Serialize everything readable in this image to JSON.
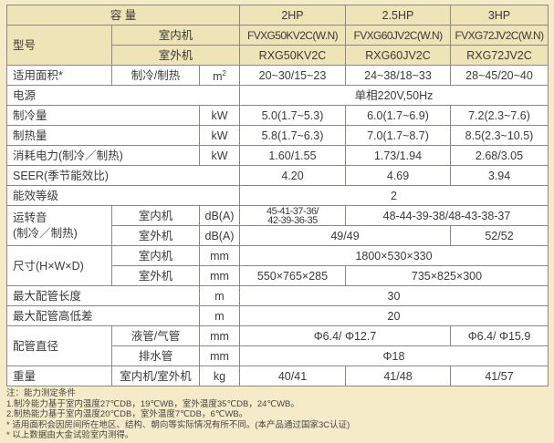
{
  "header": {
    "capacity_label": "容 量",
    "model_label": "型号",
    "indoor": "室内机",
    "outdoor": "室外机",
    "hp": [
      "2HP",
      "2.5HP",
      "3HP"
    ],
    "indoor_models": [
      "FVXG50KV2C(W.N)",
      "FVXG60JV2C(W.N)",
      "FVXG72JV2C(W.N)"
    ],
    "outdoor_models": [
      "RXG50KV2C",
      "RXG60JV2C",
      "RXG72JV2C"
    ]
  },
  "rows": {
    "area": {
      "label": "适用面积*",
      "sub": "制冷/制热",
      "unit": "m",
      "unit_sup": "2",
      "values": [
        "20~30/15~23",
        "24~38/18~33",
        "28~45/20~40"
      ]
    },
    "power_supply": {
      "label": "电源",
      "value": "单相220V,50Hz"
    },
    "cooling": {
      "label": "制冷量",
      "unit": "kW",
      "values": [
        "5.0(1.7~5.3)",
        "6.0(1.7~6.9)",
        "7.2(2.3~7.6)"
      ]
    },
    "heating": {
      "label": "制热量",
      "unit": "kW",
      "values": [
        "5.8(1.7~6.3)",
        "7.0(1.7~8.7)",
        "8.5(2.3~10.5)"
      ]
    },
    "consumption": {
      "label": "消耗电力(制冷／制热)",
      "unit": "kW",
      "values": [
        "1.60/1.55",
        "1.73/1.94",
        "2.68/3.05"
      ]
    },
    "seer": {
      "label": "SEER(季节能效比)",
      "values": [
        "4.20",
        "4.69",
        "3.94"
      ]
    },
    "efficiency": {
      "label": "能效等级",
      "value": "2"
    },
    "noise": {
      "label1": "运转音",
      "label2": "(制冷／制热)",
      "indoor": "室内机",
      "outdoor": "室外机",
      "unit": "dB(A)",
      "indoor_values": [
        "45-41-37-36/",
        "42-39-36-35",
        "48-44-39-38/48-43-38-37"
      ],
      "outdoor_values": [
        "49/49",
        "52/52"
      ]
    },
    "size": {
      "label": "尺寸(H×W×D)",
      "indoor": "室内机",
      "outdoor": "室外机",
      "unit": "mm",
      "indoor_value": "1800×530×330",
      "outdoor_values": [
        "550×765×285",
        "735×825×300"
      ]
    },
    "max_pipe_length": {
      "label": "最大配管长度",
      "unit": "m",
      "value": "30"
    },
    "max_height_diff": {
      "label": "最大配管高低差",
      "unit": "m",
      "value": "20"
    },
    "pipe_diameter": {
      "label": "配管直径",
      "liquid_gas": "液管/气管",
      "drain": "排水管",
      "unit": "mm",
      "liquid_gas_values": [
        "Φ6.4/ Φ12.7",
        "Φ6.4/ Φ15.9"
      ],
      "drain_value": "Φ18"
    },
    "weight": {
      "label": "重量",
      "sub": "室内机/室外机",
      "unit": "kg",
      "values": [
        "40/41",
        "41/48",
        "41/57"
      ]
    }
  },
  "notes": [
    "注：能力测定条件",
    "1.制冷能力基于室内温度27℃DB，19℃WB，室外温度35℃DB，24℃WB。",
    "2.制热能力基于室内温度20℃DB，室外温度7℃DB，6℃WB。",
    "* 适用面积会因房间所在地区、结构、朝向等实际情况有所不同。(本产品通过国家3C认证)",
    "* 以上数据由大金试验室内测得。"
  ]
}
